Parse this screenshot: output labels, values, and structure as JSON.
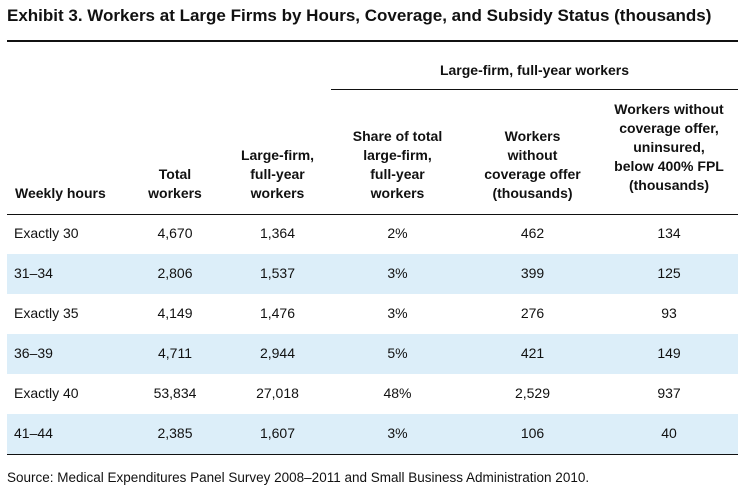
{
  "title": "Exhibit 3. Workers at Large Firms by Hours, Coverage, and Subsidy Status (thousands)",
  "group_header": "Large-firm, full-year workers",
  "columns": {
    "weekly_hours": "Weekly hours",
    "total_workers": [
      "Total",
      "workers"
    ],
    "large_firm": [
      "Large-firm,",
      "full-year",
      "workers"
    ],
    "share": [
      "Share of total",
      "large-firm,",
      "full-year",
      "workers"
    ],
    "without_offer": [
      "Workers",
      "without",
      "coverage offer",
      "(thousands)"
    ],
    "uninsured": [
      "Workers without",
      "coverage offer,",
      "uninsured,",
      "below 400% FPL",
      "(thousands)"
    ]
  },
  "rows": [
    [
      "Exactly 30",
      "4,670",
      "1,364",
      "2%",
      "462",
      "134"
    ],
    [
      "31–34",
      "2,806",
      "1,537",
      "3%",
      "399",
      "125"
    ],
    [
      "Exactly 35",
      "4,149",
      "1,476",
      "3%",
      "276",
      "93"
    ],
    [
      "36–39",
      "4,711",
      "2,944",
      "5%",
      "421",
      "149"
    ],
    [
      "Exactly 40",
      "53,834",
      "27,018",
      "48%",
      "2,529",
      "937"
    ],
    [
      "41–44",
      "2,385",
      "1,607",
      "3%",
      "106",
      "40"
    ]
  ],
  "source": "Source: Medical Expenditures Panel Survey 2008–2011 and Small Business Administration 2010.",
  "colors": {
    "shade": "#dceef9",
    "rule": "#111111"
  }
}
